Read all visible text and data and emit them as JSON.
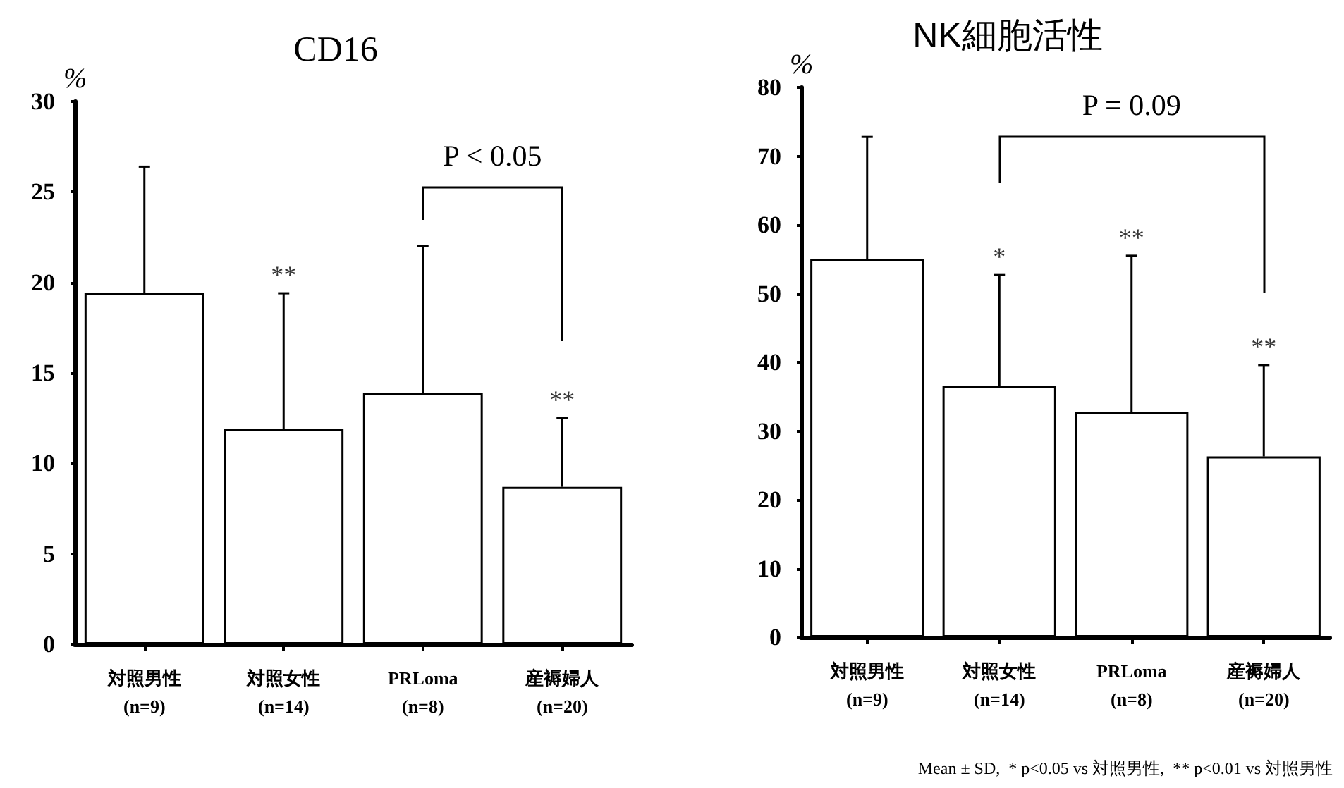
{
  "chart_data": [
    {
      "type": "bar",
      "title": "CD16",
      "ylabel": "%",
      "categories": [
        "対照男性\n(n=9)",
        "対照女性\n(n=14)",
        "PRLoma\n(n=8)",
        "産褥婦人\n(n=20)"
      ],
      "values": [
        19.4,
        11.9,
        13.9,
        8.7
      ],
      "errors": [
        [
          19.4,
          26.4
        ],
        [
          11.9,
          19.4
        ],
        [
          13.9,
          22.0
        ],
        [
          8.7,
          12.5
        ]
      ],
      "color": "#ffffff",
      "ylim": [
        0,
        30
      ],
      "yticks": [
        0,
        5,
        10,
        15,
        20,
        25,
        30
      ],
      "annotations": [
        {
          "text": "**",
          "x": "対照女性\n(n=14)",
          "y": 19.4
        },
        {
          "text": "**",
          "x": "産褥婦人\n(n=20)",
          "y": 12.5
        },
        "P < 0.05"
      ]
    },
    {
      "type": "bar",
      "title": "NK細胞活性",
      "ylabel": "%",
      "categories": [
        "対照男性\n(n=9)",
        "対照女性\n(n=14)",
        "PRLoma\n(n=8)",
        "産褥婦人\n(n=20)"
      ],
      "values": [
        55.0,
        36.6,
        32.8,
        26.3
      ],
      "errors": [
        [
          55.0,
          72.8
        ],
        [
          36.6,
          52.7
        ],
        [
          32.8,
          55.5
        ],
        [
          26.3,
          39.6
        ]
      ],
      "color": "#ffffff",
      "ylim": [
        0,
        80
      ],
      "yticks": [
        0,
        10,
        20,
        30,
        40,
        50,
        60,
        70,
        80
      ],
      "annotations": [
        {
          "text": "*",
          "x": "対照女性\n(n=14)",
          "y": 52.7
        },
        {
          "text": "**",
          "x": "PRLoma\n(n=8)",
          "y": 55.5
        },
        {
          "text": "**",
          "x": "産褥婦人\n(n=20)",
          "y": 39.6
        },
        "P = 0.09",
        "Mean ± SD,  * p<0.05 vs 対照男性,  ** p<0.01 vs 対照男性"
      ]
    }
  ]
}
